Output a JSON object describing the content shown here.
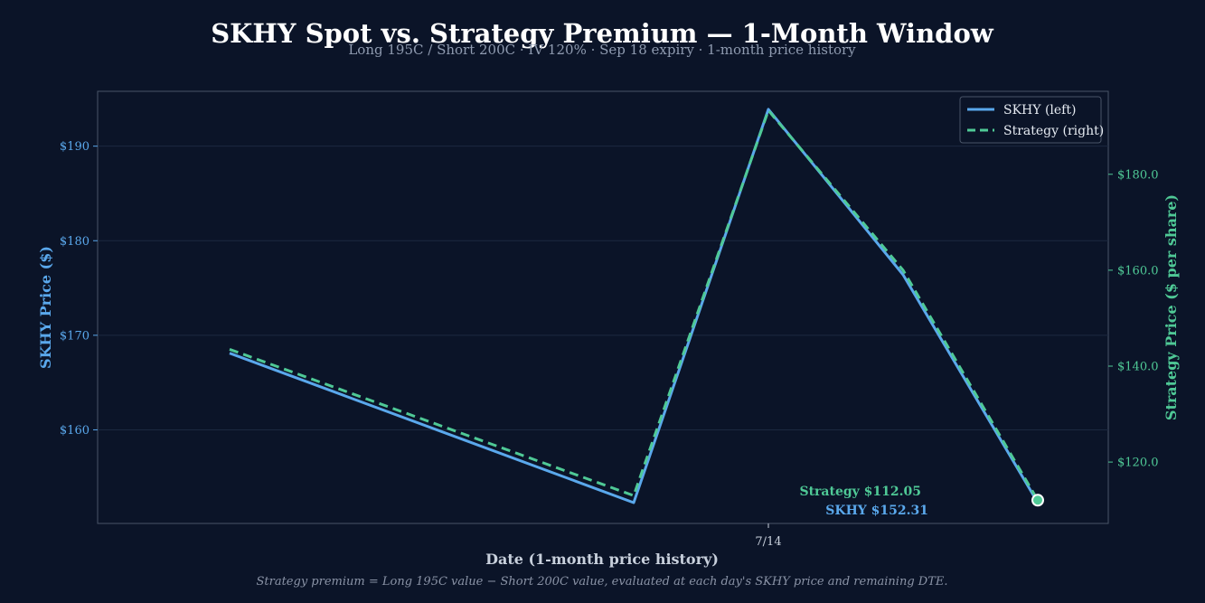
{
  "chart_data": {
    "type": "line",
    "title": "SKHY Spot vs. Strategy Premium — 1-Month Window",
    "subtitle": "Long 195C / Short 200C · IV 120% · Sep 18 expiry · 1-month price history",
    "xlabel": "Date (1-month price history)",
    "ylabel_left": "SKHY Price ($)",
    "ylabel_right": "Strategy Price ($ per share)",
    "footnote": "Strategy premium = Long 195C value − Short 200C value, evaluated at each day's SKHY price and remaining DTE.",
    "x_ticks": [
      {
        "label": "7/14",
        "x": 4
      }
    ],
    "x_range": [
      0,
      10
    ],
    "left_axis": {
      "range": [
        150.1,
        195.8
      ],
      "ticks": [
        160,
        170,
        180,
        190
      ],
      "tick_labels": [
        "$160",
        "$170",
        "$180",
        "$190"
      ],
      "color": "#5aa8ec"
    },
    "right_axis": {
      "range": [
        107.2,
        197.3
      ],
      "ticks": [
        120,
        140,
        160,
        180
      ],
      "tick_labels": [
        "$120.0",
        "$140.0",
        "$160.0",
        "$180.0"
      ],
      "color": "#4fc996"
    },
    "grid": true,
    "legend_position": "top-right",
    "series": [
      {
        "name": "SKHY (left)",
        "axis": "left",
        "color": "#5aa8ec",
        "style": "solid",
        "x": [
          0,
          3,
          4,
          5,
          6
        ],
        "values": [
          168.1,
          152.3,
          193.9,
          176.4,
          152.31
        ]
      },
      {
        "name": "Strategy (right)",
        "axis": "right",
        "color": "#4fc996",
        "style": "dashed",
        "x": [
          0,
          3,
          4,
          5,
          6
        ],
        "values": [
          143.5,
          113.0,
          193.3,
          160.0,
          112.05
        ]
      }
    ],
    "annotations": {
      "strategy": "Strategy $112.05",
      "spot": "SKHY $152.31"
    }
  }
}
